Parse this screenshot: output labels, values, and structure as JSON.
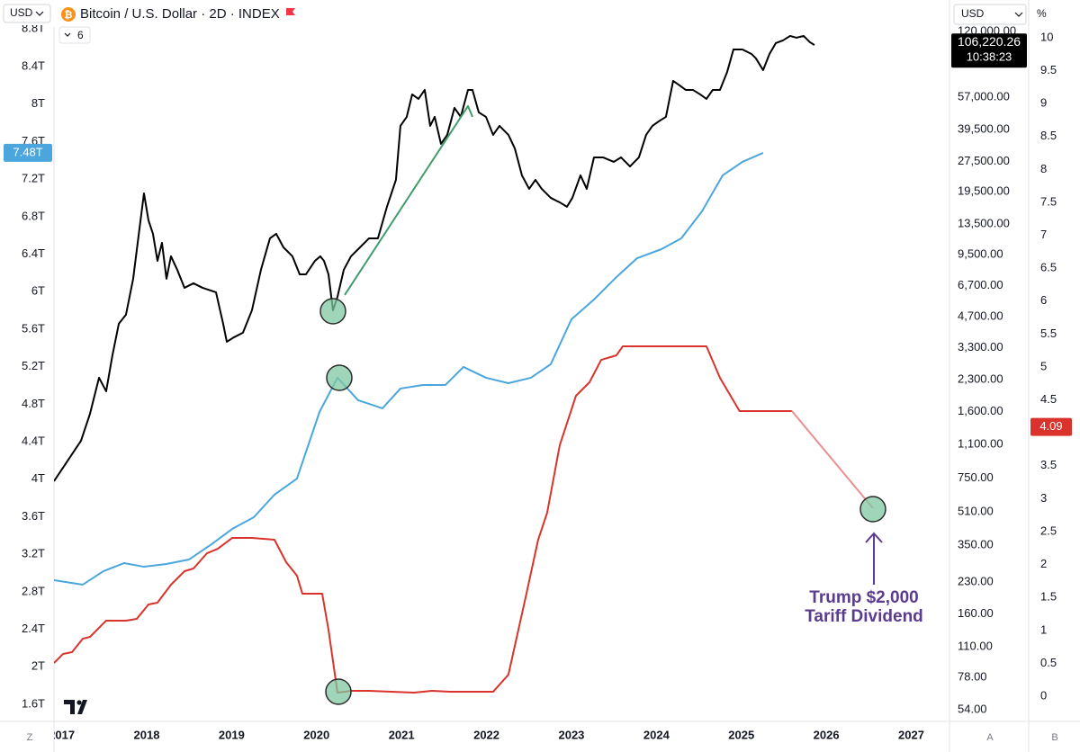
{
  "chart_data": {
    "type": "line",
    "title": "Bitcoin / U.S. Dollar · 2D · INDEX",
    "currency": "USD",
    "indicators": "6",
    "countdown": "10:38:23",
    "right_currency": "USD",
    "percent_unit": "%",
    "buttons": [
      "Z",
      "A",
      "B"
    ],
    "annotation": [
      "Trump $2,000",
      "Tariff Dividend"
    ],
    "xlim": [
      2016.909,
      2027.45
    ],
    "xticks": [
      2017,
      2018,
      2019,
      2020,
      2021,
      2022,
      2023,
      2024,
      2025,
      2026,
      2027
    ],
    "ylim": [
      1.437,
      8.822
    ],
    "yticks": [
      {
        "value": 1.6,
        "label": "1.6T"
      },
      {
        "value": 2,
        "label": "2T"
      },
      {
        "value": 2.4,
        "label": "2.4T"
      },
      {
        "value": 2.8,
        "label": "2.8T"
      },
      {
        "value": 3.2,
        "label": "3.2T"
      },
      {
        "value": 3.6,
        "label": "3.6T"
      },
      {
        "value": 4,
        "label": "4T"
      },
      {
        "value": 4.4,
        "label": "4.4T"
      },
      {
        "value": 4.8,
        "label": "4.8T"
      },
      {
        "value": 5.2,
        "label": "5.2T"
      },
      {
        "value": 5.6,
        "label": "5.6T"
      },
      {
        "value": 6,
        "label": "6T"
      },
      {
        "value": 6.4,
        "label": "6.4T"
      },
      {
        "value": 6.8,
        "label": "6.8T"
      },
      {
        "value": 7.2,
        "label": "7.2T"
      },
      {
        "value": 7.6,
        "label": "7.6T"
      },
      {
        "value": 8,
        "label": "8T"
      },
      {
        "value": 8.4,
        "label": "8.4T"
      },
      {
        "value": 8.8,
        "label": "8.8T"
      }
    ],
    "y2lim": [
      48.2,
      126650
    ],
    "y2log": true,
    "y2ticks": [
      {
        "value": 54,
        "label": "54.00"
      },
      {
        "value": 78,
        "label": "78.00"
      },
      {
        "value": 110,
        "label": "110.00"
      },
      {
        "value": 160,
        "label": "160.00"
      },
      {
        "value": 230,
        "label": "230.00"
      },
      {
        "value": 350,
        "label": "350.00"
      },
      {
        "value": 510,
        "label": "510.00"
      },
      {
        "value": 750,
        "label": "750.00"
      },
      {
        "value": 1100,
        "label": "1,100.00"
      },
      {
        "value": 1600,
        "label": "1,600.00"
      },
      {
        "value": 2300,
        "label": "2,300.00"
      },
      {
        "value": 3300,
        "label": "3,300.00"
      },
      {
        "value": 4700,
        "label": "4,700.00"
      },
      {
        "value": 6700,
        "label": "6,700.00"
      },
      {
        "value": 9500,
        "label": "9,500.00"
      },
      {
        "value": 13500,
        "label": "13,500.00"
      },
      {
        "value": 19500,
        "label": "19,500.00"
      },
      {
        "value": 27500,
        "label": "27,500.00"
      },
      {
        "value": 39500,
        "label": "39,500.00"
      },
      {
        "value": 57000,
        "label": "57,000.00"
      },
      {
        "value": 120000,
        "label": "120,000.00"
      }
    ],
    "y3lim": [
      -0.355,
      10.164
    ],
    "y3ticks": [
      0,
      0.5,
      1,
      1.5,
      2,
      2.5,
      3,
      3.5,
      4,
      4.5,
      5,
      5.5,
      6,
      6.5,
      7,
      7.5,
      8,
      8.5,
      9,
      9.5,
      10
    ],
    "series": [
      {
        "axis": "y2",
        "color": "#000000",
        "last_value": 106220.26,
        "last_value_label": "106,220.26",
        "x": [
          2016.909,
          2017.015,
          2017.121,
          2017.227,
          2017.333,
          2017.439,
          2017.523,
          2017.597,
          2017.672,
          2017.756,
          2017.841,
          2017.894,
          2017.968,
          2018.021,
          2018.074,
          2018.127,
          2018.18,
          2018.233,
          2018.286,
          2018.36,
          2018.445,
          2018.551,
          2018.657,
          2018.816,
          2018.9,
          2018.943,
          2019.028,
          2019.133,
          2019.239,
          2019.345,
          2019.451,
          2019.525,
          2019.61,
          2019.716,
          2019.801,
          2019.875,
          2019.981,
          2020.044,
          2020.087,
          2020.14,
          2020.193,
          2020.246,
          2020.32,
          2020.405,
          2020.511,
          2020.617,
          2020.722,
          2020.828,
          2020.934,
          2020.987,
          2021.061,
          2021.125,
          2021.199,
          2021.273,
          2021.337,
          2021.39,
          2021.464,
          2021.538,
          2021.623,
          2021.697,
          2021.782,
          2021.835,
          2021.909,
          2021.994,
          2022.078,
          2022.153,
          2022.258,
          2022.333,
          2022.417,
          2022.502,
          2022.576,
          2022.65,
          2022.756,
          2022.862,
          2022.947,
          2023.011,
          2023.106,
          2023.18,
          2023.265,
          2023.371,
          2023.498,
          2023.583,
          2023.689,
          2023.794,
          2023.879,
          2023.953,
          2024.027,
          2024.112,
          2024.197,
          2024.273,
          2024.345,
          2024.43,
          2024.515,
          2024.589,
          2024.663,
          2024.748,
          2024.833,
          2024.907,
          2025.013,
          2025.119,
          2025.172,
          2025.256,
          2025.331,
          2025.405,
          2025.489,
          2025.574,
          2025.648,
          2025.733,
          2025.807,
          2025.86
        ],
        "values": [
          725,
          845,
          985,
          1148,
          1561,
          2349,
          2015,
          3034,
          4339,
          4806,
          7236,
          10890,
          19110,
          14060,
          12060,
          8874,
          10890,
          7236,
          9341,
          8013,
          6531,
          6874,
          6531,
          6206,
          4339,
          3536,
          3722,
          3918,
          5058,
          8013,
          11460,
          12060,
          10340,
          9341,
          7613,
          7613,
          8874,
          9341,
          8874,
          7613,
          5058,
          5896,
          8013,
          9341,
          10340,
          11460,
          11460,
          16400,
          22270,
          41150,
          45580,
          58850,
          55920,
          61930,
          41150,
          45580,
          33540,
          37150,
          50500,
          45580,
          61930,
          61930,
          47980,
          45580,
          37150,
          41150,
          37150,
          31870,
          23450,
          20110,
          22270,
          20110,
          18160,
          17250,
          16400,
          18160,
          23450,
          20110,
          28760,
          28760,
          27330,
          28760,
          25960,
          28760,
          37150,
          41150,
          43300,
          45580,
          68600,
          65180,
          61930,
          61930,
          58850,
          55920,
          61930,
          61930,
          75990,
          98100,
          98100,
          93210,
          88560,
          77560,
          93210,
          105400,
          108700,
          114400,
          112100,
          114400,
          106500,
          103200
        ]
      },
      {
        "axis": "y",
        "color": "#4ba6dd",
        "last_value": 7.48,
        "last_value_label": "7.48T",
        "x": [
          2016.909,
          2017.248,
          2017.492,
          2017.735,
          2017.968,
          2018.233,
          2018.498,
          2018.763,
          2019.006,
          2019.261,
          2019.504,
          2019.769,
          2020.034,
          2020.246,
          2020.489,
          2020.775,
          2020.987,
          2021.252,
          2021.517,
          2021.729,
          2021.994,
          2022.258,
          2022.523,
          2022.756,
          2023.0,
          2023.265,
          2023.53,
          2023.773,
          2024.059,
          2024.292,
          2024.536,
          2024.78,
          2025.013,
          2025.256
        ],
        "values": [
          2.924,
          2.876,
          3.02,
          3.106,
          3.067,
          3.096,
          3.144,
          3.307,
          3.47,
          3.595,
          3.835,
          4.007,
          4.717,
          5.082,
          4.842,
          4.756,
          4.967,
          5.005,
          5.005,
          5.197,
          5.082,
          5.024,
          5.082,
          5.226,
          5.705,
          5.916,
          6.156,
          6.357,
          6.453,
          6.568,
          6.856,
          7.24,
          7.384,
          7.48
        ]
      },
      {
        "axis": "y3",
        "color": "#d9332b",
        "last_value": 4.09,
        "x": [
          2016.909,
          2017.015,
          2017.121,
          2017.248,
          2017.333,
          2017.523,
          2017.756,
          2017.883,
          2018.021,
          2018.127,
          2018.286,
          2018.445,
          2018.551,
          2018.71,
          2018.837,
          2019.006,
          2019.239,
          2019.504,
          2019.642,
          2019.769,
          2019.833,
          2020.066,
          2020.14,
          2020.246,
          2020.405,
          2020.617,
          2021.146,
          2021.358,
          2021.57,
          2022.078,
          2022.258,
          2022.47,
          2022.608,
          2022.714,
          2022.862,
          2023.053,
          2023.212,
          2023.35,
          2023.53,
          2023.604,
          2024.112,
          2024.589,
          2024.748,
          2024.979,
          2025.595
        ],
        "values": [
          0.505,
          0.642,
          0.669,
          0.874,
          0.902,
          1.148,
          1.148,
          1.175,
          1.393,
          1.421,
          1.694,
          1.899,
          1.94,
          2.172,
          2.24,
          2.404,
          2.404,
          2.377,
          2.036,
          1.831,
          1.557,
          1.557,
          1.011,
          0.055,
          0.082,
          0.082,
          0.055,
          0.082,
          0.068,
          0.068,
          0.328,
          1.557,
          2.377,
          2.787,
          3.811,
          4.563,
          4.768,
          5.109,
          5.178,
          5.314,
          5.314,
          5.314,
          4.836,
          4.331,
          4.331
        ]
      },
      {
        "axis": "y3",
        "color": "#e98f8f",
        "x": [
          2025.595,
          2026.549
        ],
        "values": [
          4.331,
          2.855
        ]
      },
      {
        "axis": "y2",
        "color": "#3f9c6c",
        "x": [
          2020.331,
          2021.782,
          2021.835
        ],
        "values": [
          6018,
          51520,
          45580
        ]
      }
    ]
  }
}
